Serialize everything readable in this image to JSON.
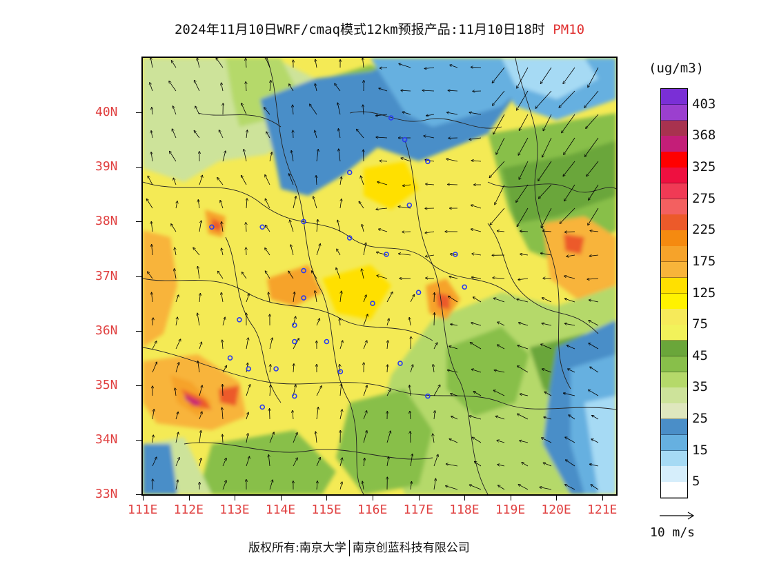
{
  "title": {
    "text": "2024年11月10日WRF/cmaq模式12km预报产品:11月10日18时",
    "variable": "PM10",
    "variable_color": "#e03030"
  },
  "axes": {
    "lat_labels": [
      "40N",
      "39N",
      "38N",
      "37N",
      "36N",
      "35N",
      "34N",
      "33N"
    ],
    "lon_labels": [
      "111E",
      "112E",
      "113E",
      "114E",
      "115E",
      "116E",
      "117E",
      "118E",
      "119E",
      "120E",
      "121E"
    ],
    "lat_range": [
      33,
      41
    ],
    "lon_range": [
      111,
      121.3
    ],
    "label_color": "#e04040"
  },
  "legend": {
    "units": "(ug/m3)",
    "bins": [
      {
        "label": "403",
        "color": "#7a2fd6"
      },
      {
        "label": "",
        "color": "#9b3fcf"
      },
      {
        "label": "368",
        "color": "#a8324f"
      },
      {
        "label": "",
        "color": "#c41e78"
      },
      {
        "label": "325",
        "color": "#ff0000"
      },
      {
        "label": "",
        "color": "#ee1040"
      },
      {
        "label": "275",
        "color": "#f03a55"
      },
      {
        "label": "",
        "color": "#f36060"
      },
      {
        "label": "225",
        "color": "#ec5a2a"
      },
      {
        "label": "",
        "color": "#f58a10"
      },
      {
        "label": "175",
        "color": "#f6a32a"
      },
      {
        "label": "",
        "color": "#f8b43a"
      },
      {
        "label": "125",
        "color": "#ffe000"
      },
      {
        "label": "",
        "color": "#fff200"
      },
      {
        "label": "75",
        "color": "#f6ea5a"
      },
      {
        "label": "",
        "color": "#f2f25a"
      },
      {
        "label": "45",
        "color": "#6aa63a"
      },
      {
        "label": "",
        "color": "#88bf4a"
      },
      {
        "label": "35",
        "color": "#b5d96a"
      },
      {
        "label": "",
        "color": "#cde39a"
      },
      {
        "label": "25",
        "color": "#dfe7be"
      },
      {
        "label": "",
        "color": "#4a8ec8"
      },
      {
        "label": "15",
        "color": "#66b0e0"
      },
      {
        "label": "",
        "color": "#a6daf4"
      },
      {
        "label": "5",
        "color": "#d6eefb"
      },
      {
        "label": "",
        "color": "#ffffff"
      }
    ]
  },
  "wind_reference": "10 m/s",
  "copyright": {
    "left": "版权所有:南京大学",
    "right": "南京创蓝科技有限公司"
  },
  "cities": [
    [
      116.4,
      39.9
    ],
    [
      117.2,
      39.1
    ],
    [
      116.7,
      39.5
    ],
    [
      115.5,
      38.9
    ],
    [
      116.8,
      38.3
    ],
    [
      114.5,
      38.0
    ],
    [
      115.5,
      37.7
    ],
    [
      113.6,
      37.9
    ],
    [
      112.5,
      37.9
    ],
    [
      116.3,
      37.4
    ],
    [
      117.0,
      36.7
    ],
    [
      118.0,
      36.8
    ],
    [
      117.8,
      37.4
    ],
    [
      114.5,
      36.6
    ],
    [
      114.5,
      37.1
    ],
    [
      116.0,
      36.5
    ],
    [
      114.3,
      36.1
    ],
    [
      113.1,
      36.2
    ],
    [
      115.0,
      35.8
    ],
    [
      114.3,
      35.8
    ],
    [
      113.9,
      35.3
    ],
    [
      116.6,
      35.4
    ],
    [
      115.3,
      35.25
    ],
    [
      112.9,
      35.5
    ],
    [
      113.3,
      35.3
    ],
    [
      114.3,
      34.8
    ],
    [
      113.6,
      34.6
    ],
    [
      117.2,
      34.8
    ]
  ]
}
